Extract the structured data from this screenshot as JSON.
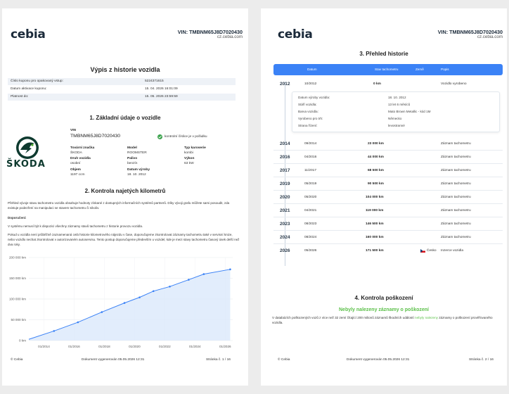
{
  "page1": {
    "logo": "cebia",
    "vin_header": "VIN: TMBNM65J8D7020430",
    "site": "cz.cebia.com",
    "title": "Výpis z historie vozidla",
    "info_rows": [
      {
        "label": "Číslo kuponu pro opakovaný vstup:",
        "value": "5224371615"
      },
      {
        "label": "Datum aktivace kuponu:",
        "value": "15. 04. 2026 16:01:09"
      },
      {
        "label": "Platnost do:",
        "value": "15. 05. 2026 23:59:59"
      }
    ],
    "section1_title": "1. Základní údaje o vozidle",
    "vin_label": "VIN",
    "vin_value": "TMBNM65J8D7020430",
    "vin_check": "kontrolní číslice je v pořádku",
    "brand_wordmark": "ŠKODA",
    "details": [
      {
        "label": "Tovární značka",
        "value": "ŠKODA"
      },
      {
        "label": "Model",
        "value": "ROOMSTER"
      },
      {
        "label": "Typ karoserie",
        "value": "kombi"
      },
      {
        "label": "Druh vozidla",
        "value": "osobní"
      },
      {
        "label": "Palivo",
        "value": "benzín"
      },
      {
        "label": "Výkon",
        "value": "63 kW"
      },
      {
        "label": "Objem",
        "value": "1197 ccm"
      },
      {
        "label": "Datum výroby",
        "value": "18. 10. 2012"
      }
    ],
    "section2_title": "2. Kontrola najetých kilometrů",
    "para1": "Přehled vývoje stavu tachometru vozidla obsahuje hodnoty získané z dostupných informačních systémů partnerů. Díky vývoji grafu můžete sami posoudit, zda existuje podezření na manipulaci se stavem tachometru či nikoliv.",
    "para_heading": "Doporučení:",
    "para2": "V systému nemusí být k dispozici všechny záznamy stavů tachometru z historie provozu vozidla.",
    "para3": "Pokud u vozidla není průběžně zaznamenaná celá historie kilometrového nájezdu v čase, doporučujeme zkontrolovat záznamy tachometru také v servisní knize, nebo vozidlo nechat zkontrolovat v autorizovaném autoservisu. Tento postup doporučujeme především u vozidel, kde je mezi stavy tachometru časový úsek delší než dva roky.",
    "footer_left": "© Cebia",
    "footer_center": "Dokument vygenerován 05.05.2026 12:31",
    "footer_right": "Stránka č. 1 / 16"
  },
  "chart_data": {
    "type": "line",
    "x": [
      "2012-10",
      "2014-09",
      "2016-04",
      "2017-11",
      "2019-05",
      "2020-05",
      "2021-04",
      "2022-05",
      "2023-08",
      "2024-08",
      "2026-05"
    ],
    "values": [
      0,
      23000,
      44000,
      68500,
      90500,
      104000,
      119000,
      130000,
      146500,
      160000,
      171500
    ],
    "xticks": [
      "01/2014",
      "01/2016",
      "01/2018",
      "01/2020",
      "01/2022",
      "01/2024",
      "01/2026"
    ],
    "yticks": [
      "0 km",
      "50 000 km",
      "100 000 km",
      "150 000 km",
      "200 000 km"
    ],
    "ylim": [
      0,
      200000
    ],
    "grid": true,
    "line_color": "#3b82f6",
    "fill_color": "#dbe9fb"
  },
  "page2": {
    "logo": "cebia",
    "vin_header": "VIN: TMBNM65J8D7020430",
    "site": "cz.cebia.com",
    "section3_title": "3. Přehled historie",
    "table_headers": {
      "date": "Datum",
      "km": "Stav tachometru",
      "country": "Země",
      "desc": "Popis"
    },
    "rows": [
      {
        "year": "2012",
        "date": "10/2012",
        "km": "0 km",
        "country": "",
        "desc": "Vozidlo vyrobeno"
      },
      {
        "year": "2014",
        "date": "09/2014",
        "km": "23 000 km",
        "country": "",
        "desc": "Záznam tachometru"
      },
      {
        "year": "2016",
        "date": "04/2016",
        "km": "44 000 km",
        "country": "",
        "desc": "Záznam tachometru"
      },
      {
        "year": "2017",
        "date": "11/2017",
        "km": "68 500 km",
        "country": "",
        "desc": "Záznam tachometru"
      },
      {
        "year": "2019",
        "date": "05/2019",
        "km": "90 500 km",
        "country": "",
        "desc": "Záznam tachometru"
      },
      {
        "year": "2020",
        "date": "05/2020",
        "km": "104 000 km",
        "country": "",
        "desc": "Záznam tachometru"
      },
      {
        "year": "2021",
        "date": "04/2021",
        "km": "119 000 km",
        "country": "",
        "desc": "Záznam tachometru"
      },
      {
        "year": "2023",
        "date": "08/2023",
        "km": "146 500 km",
        "country": "",
        "desc": "Záznam tachometru"
      },
      {
        "year": "2024",
        "date": "08/2024",
        "km": "160 000 km",
        "country": "",
        "desc": "Záznam tachometru"
      },
      {
        "year": "2026",
        "date": "05/2026",
        "km": "171 500 km",
        "country": "Česko",
        "desc": "Inzerce vozidla"
      }
    ],
    "detail": [
      {
        "label": "Datum výroby vozidla:",
        "value": "18. 10. 2012"
      },
      {
        "label": "Stáří vozidla:",
        "value": "13 let 6 měsíců"
      },
      {
        "label": "Barva vozidla:",
        "value": "Mato Brown Metallic - kód 1M"
      },
      {
        "label": "Vyrobeno pro trh:",
        "value": "Německo"
      },
      {
        "label": "Strana řízení:",
        "value": "levostranné"
      }
    ],
    "section4_title": "4. Kontrola poškození",
    "no_damage": "Nebyly nalezeny záznamy o poškození",
    "damage_text_a": "V databázích poškozených vozů z více než 32 zemí čítající 200 milionů záznamů škodních událostí",
    "damage_text_b": "nebyly nalezeny",
    "damage_text_c": "záznamy o poškození prověřovaného vozidla.",
    "footer_left": "© Cebia",
    "footer_center": "Dokument vygenerován 05.05.2026 12:31",
    "footer_right": "Stránka č. 2 / 16"
  }
}
